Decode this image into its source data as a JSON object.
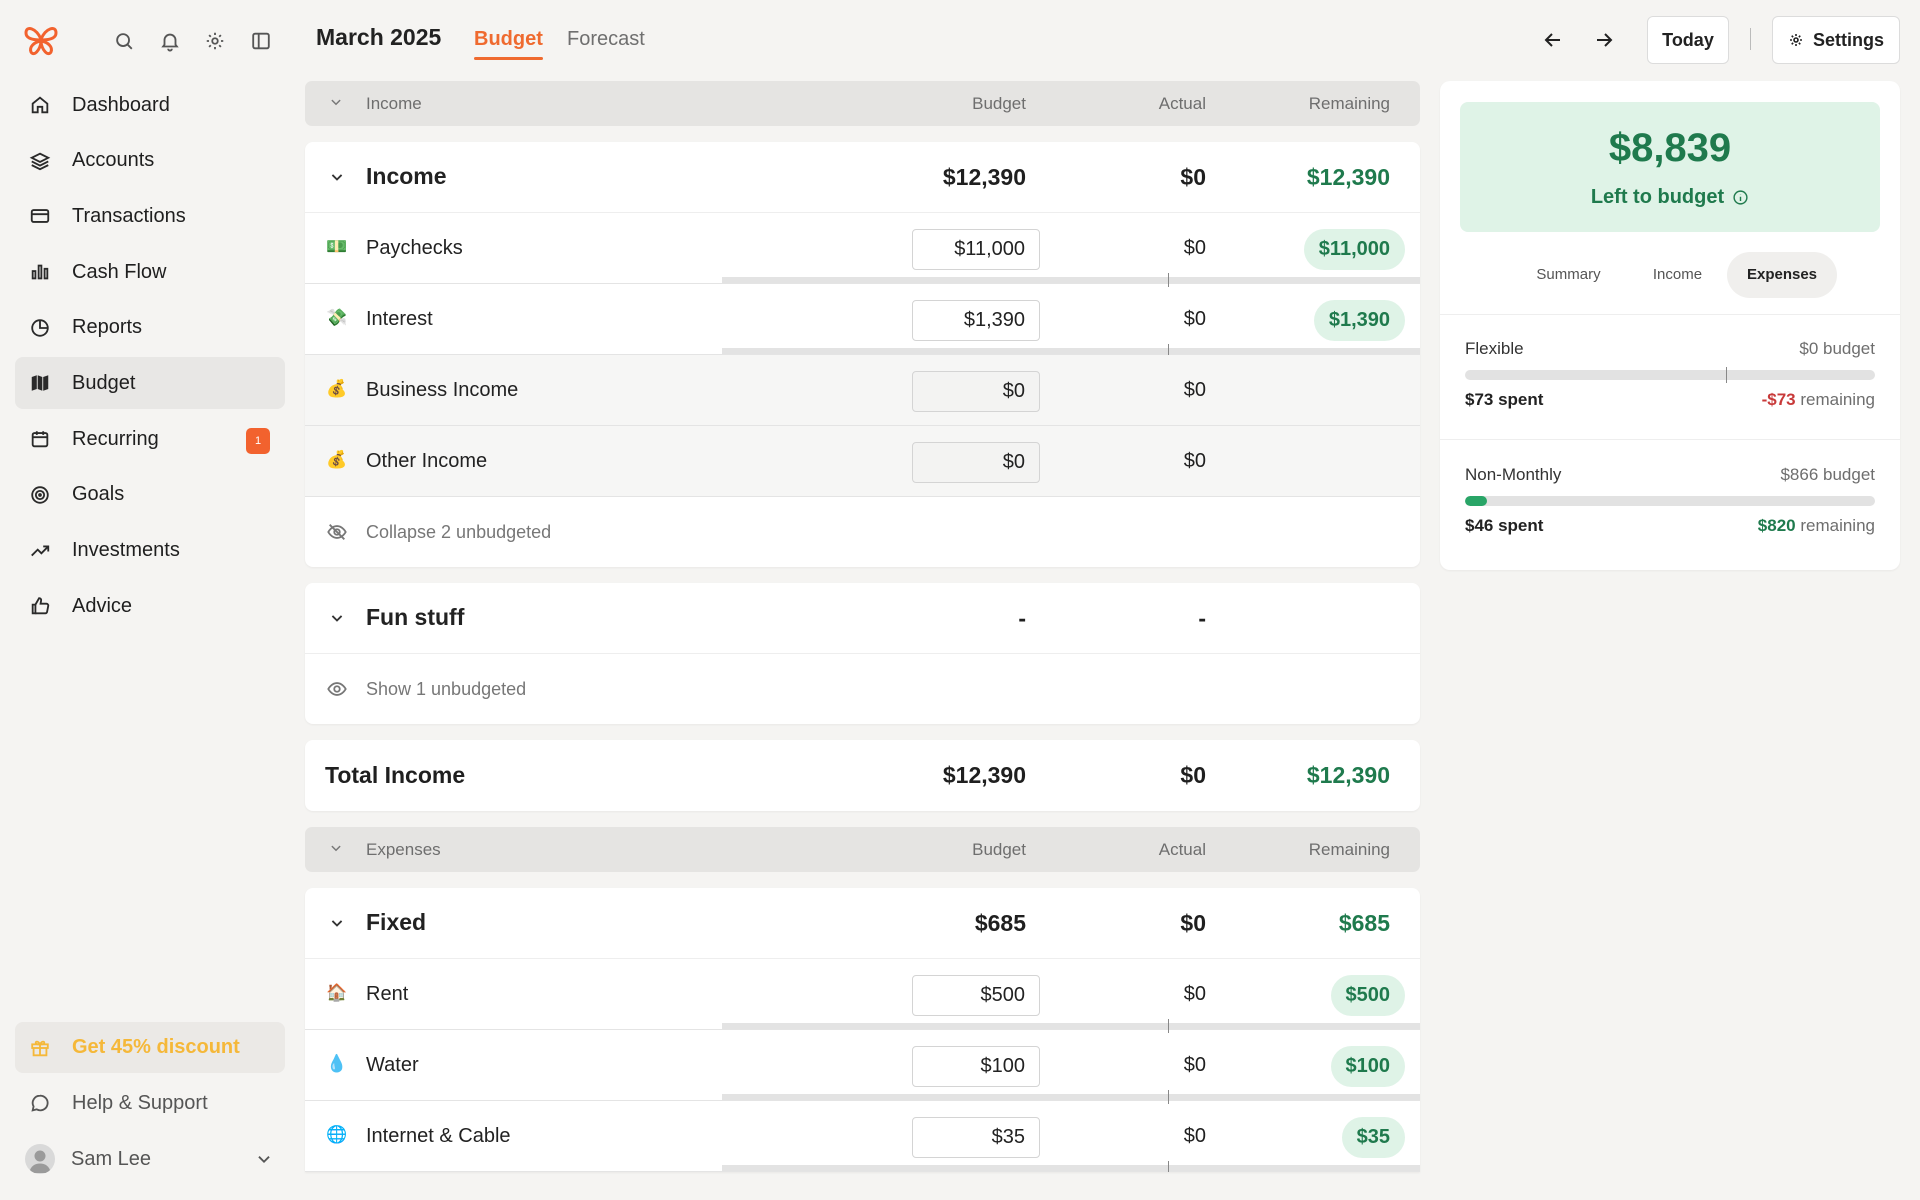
{
  "sidebar": {
    "nav": [
      {
        "label": "Dashboard",
        "icon": "home-icon"
      },
      {
        "label": "Accounts",
        "icon": "layers-icon"
      },
      {
        "label": "Transactions",
        "icon": "credit-card-icon"
      },
      {
        "label": "Cash Flow",
        "icon": "bar-chart-icon"
      },
      {
        "label": "Reports",
        "icon": "pie-chart-icon"
      },
      {
        "label": "Budget",
        "icon": "map-icon"
      },
      {
        "label": "Recurring",
        "icon": "calendar-icon",
        "badge": "1"
      },
      {
        "label": "Goals",
        "icon": "target-icon"
      },
      {
        "label": "Investments",
        "icon": "trending-up-icon"
      },
      {
        "label": "Advice",
        "icon": "thumbs-up-icon"
      }
    ],
    "promo": "Get 45% discount",
    "help": "Help & Support",
    "user": "Sam Lee"
  },
  "header": {
    "title": "March 2025",
    "tabs": [
      "Budget",
      "Forecast"
    ],
    "today": "Today",
    "settings": "Settings"
  },
  "income": {
    "header": {
      "label": "Income",
      "budget": "Budget",
      "actual": "Actual",
      "remaining": "Remaining"
    },
    "group": {
      "name": "Income",
      "budget": "$12,390",
      "actual": "$0",
      "remaining": "$12,390"
    },
    "rows": [
      {
        "emoji": "💵",
        "name": "Paychecks",
        "budget": "$11,000",
        "actual": "$0",
        "remaining": "$11,000"
      },
      {
        "emoji": "💸",
        "name": "Interest",
        "budget": "$1,390",
        "actual": "$0",
        "remaining": "$1,390"
      },
      {
        "emoji": "💰",
        "name": "Business Income",
        "budget": "$0",
        "actual": "$0"
      },
      {
        "emoji": "💰",
        "name": "Other Income",
        "budget": "$0",
        "actual": "$0"
      }
    ],
    "collapse": "Collapse 2 unbudgeted",
    "fun": {
      "name": "Fun stuff",
      "budget": "-",
      "actual": "-"
    },
    "show": "Show 1 unbudgeted",
    "total": {
      "name": "Total Income",
      "budget": "$12,390",
      "actual": "$0",
      "remaining": "$12,390"
    }
  },
  "expenses": {
    "header": {
      "label": "Expenses",
      "budget": "Budget",
      "actual": "Actual",
      "remaining": "Remaining"
    },
    "group": {
      "name": "Fixed",
      "budget": "$685",
      "actual": "$0",
      "remaining": "$685"
    },
    "rows": [
      {
        "emoji": "🏠",
        "name": "Rent",
        "budget": "$500",
        "actual": "$0",
        "remaining": "$500"
      },
      {
        "emoji": "💧",
        "name": "Water",
        "budget": "$100",
        "actual": "$0",
        "remaining": "$100"
      },
      {
        "emoji": "🌐",
        "name": "Internet & Cable",
        "budget": "$35",
        "actual": "$0",
        "remaining": "$35"
      }
    ]
  },
  "panel": {
    "amount": "$8,839",
    "label": "Left to budget",
    "tabs": [
      "Summary",
      "Income",
      "Expenses"
    ],
    "categories": [
      {
        "name": "Flexible",
        "budget": "$0 budget",
        "spent": "$73 spent",
        "remaining_value": "-$73",
        "remaining_text": " remaining",
        "fill": 0
      },
      {
        "name": "Non-Monthly",
        "budget": "$866 budget",
        "spent": "$46 spent",
        "remaining_value": "$820",
        "remaining_text": " remaining",
        "fill": 0.053
      }
    ]
  },
  "colors": {
    "accent": "#ef6a2f",
    "green": "#1f7a4d",
    "promo": "#f5b839",
    "red": "#c83a3a"
  }
}
